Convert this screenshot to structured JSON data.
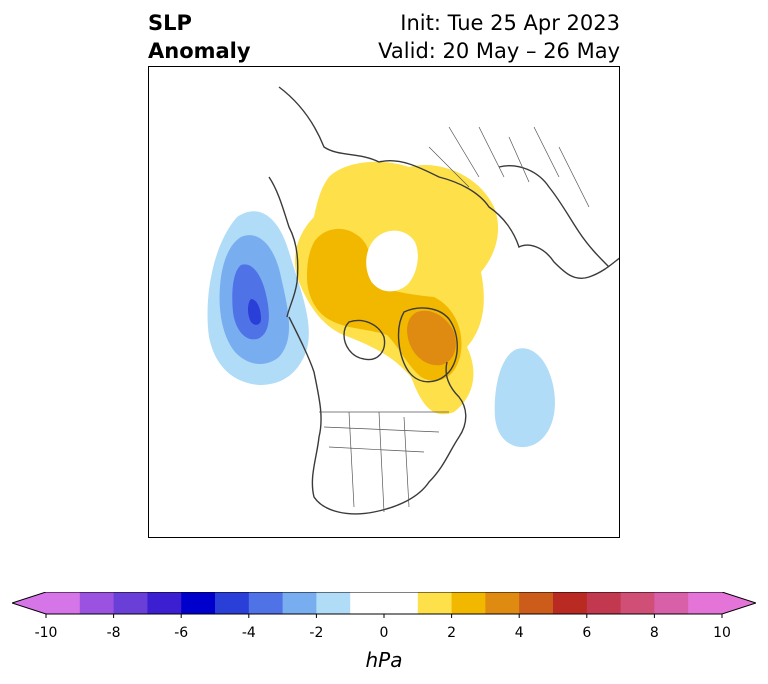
{
  "title": {
    "left_line1": "SLP",
    "left_line2": "Anomaly",
    "init": "Init: Tue 25 Apr 2023",
    "valid": "Valid: 20 May – 26 May"
  },
  "colorbar": {
    "unit": "hPa",
    "colors": [
      "#d675e8",
      "#9b52e0",
      "#6a3fd8",
      "#3b1fd0",
      "#0000cd",
      "#2a3ed8",
      "#4f72e6",
      "#78aef0",
      "#b0dcf8",
      "#ffffff",
      "#ffffff",
      "#fde04a",
      "#f2b800",
      "#df8a10",
      "#cb5c1a",
      "#b82a22",
      "#c2384e",
      "#cf4f76",
      "#d860a8",
      "#e474d8"
    ],
    "ticks": [
      "-10",
      "-8",
      "-6",
      "-4",
      "-2",
      "0",
      "2",
      "4",
      "6",
      "8",
      "10"
    ],
    "extend": "both"
  },
  "map": {
    "projection": "north polar stereographic",
    "features": {
      "negative_anomaly_center": "northeast Pacific, off western Canada",
      "positive_anomaly_center": "Greenland / Canadian Arctic",
      "secondary_negative": "western North Atlantic"
    }
  }
}
